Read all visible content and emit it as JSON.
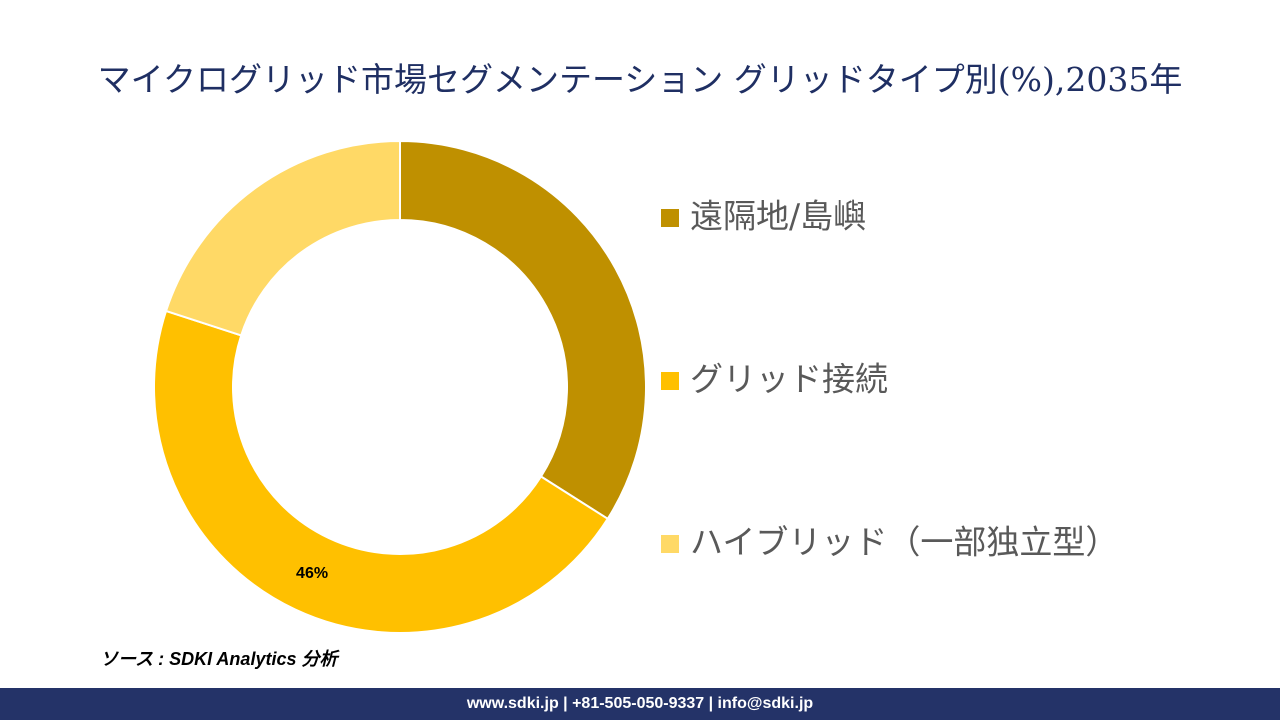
{
  "chart_data": {
    "type": "donut",
    "title": "マイクログリッド市場セグメンテーション グリッドタイプ別(%),2035年",
    "categories": [
      "遠隔地/島嶼",
      "グリッド接続",
      "ハイブリッド（一部独立型）"
    ],
    "values": [
      34,
      46,
      20
    ],
    "value_labels": [
      null,
      "46%",
      null
    ],
    "colors": [
      "#bf9000",
      "#ffc000",
      "#ffd966"
    ],
    "legend": "right"
  },
  "source": "ソース : SDKI Analytics 分析",
  "footer": "www.sdki.jp | +81-505-050-9337 | info@sdki.jp"
}
